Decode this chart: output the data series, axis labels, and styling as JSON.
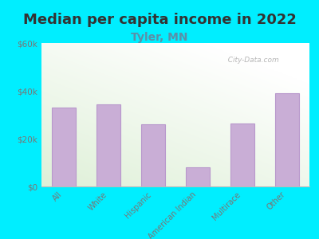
{
  "title": "Median per capita income in 2022",
  "subtitle": "Tyler, MN",
  "categories": [
    "All",
    "White",
    "Hispanic",
    "American Indian",
    "Multirace",
    "Other"
  ],
  "values": [
    33000,
    34500,
    26000,
    8000,
    26500,
    39000
  ],
  "bar_color": "#c9aed6",
  "bar_edge_color": "#b898cc",
  "background_outer": "#00eeff",
  "plot_bg_top_color": "#f5fff5",
  "plot_bg_bottom_color": "#dff0d8",
  "plot_bg_right_color": "#ffffff",
  "ylim": [
    0,
    60000
  ],
  "yticks": [
    0,
    20000,
    40000,
    60000
  ],
  "ytick_labels": [
    "$0",
    "$20k",
    "$40k",
    "$60k"
  ],
  "title_fontsize": 13,
  "title_color": "#333333",
  "subtitle_fontsize": 10,
  "subtitle_color": "#5b8fa8",
  "tick_color": "#777777",
  "watermark": "  City-Data.com",
  "watermark_color": "#aaaaaa"
}
